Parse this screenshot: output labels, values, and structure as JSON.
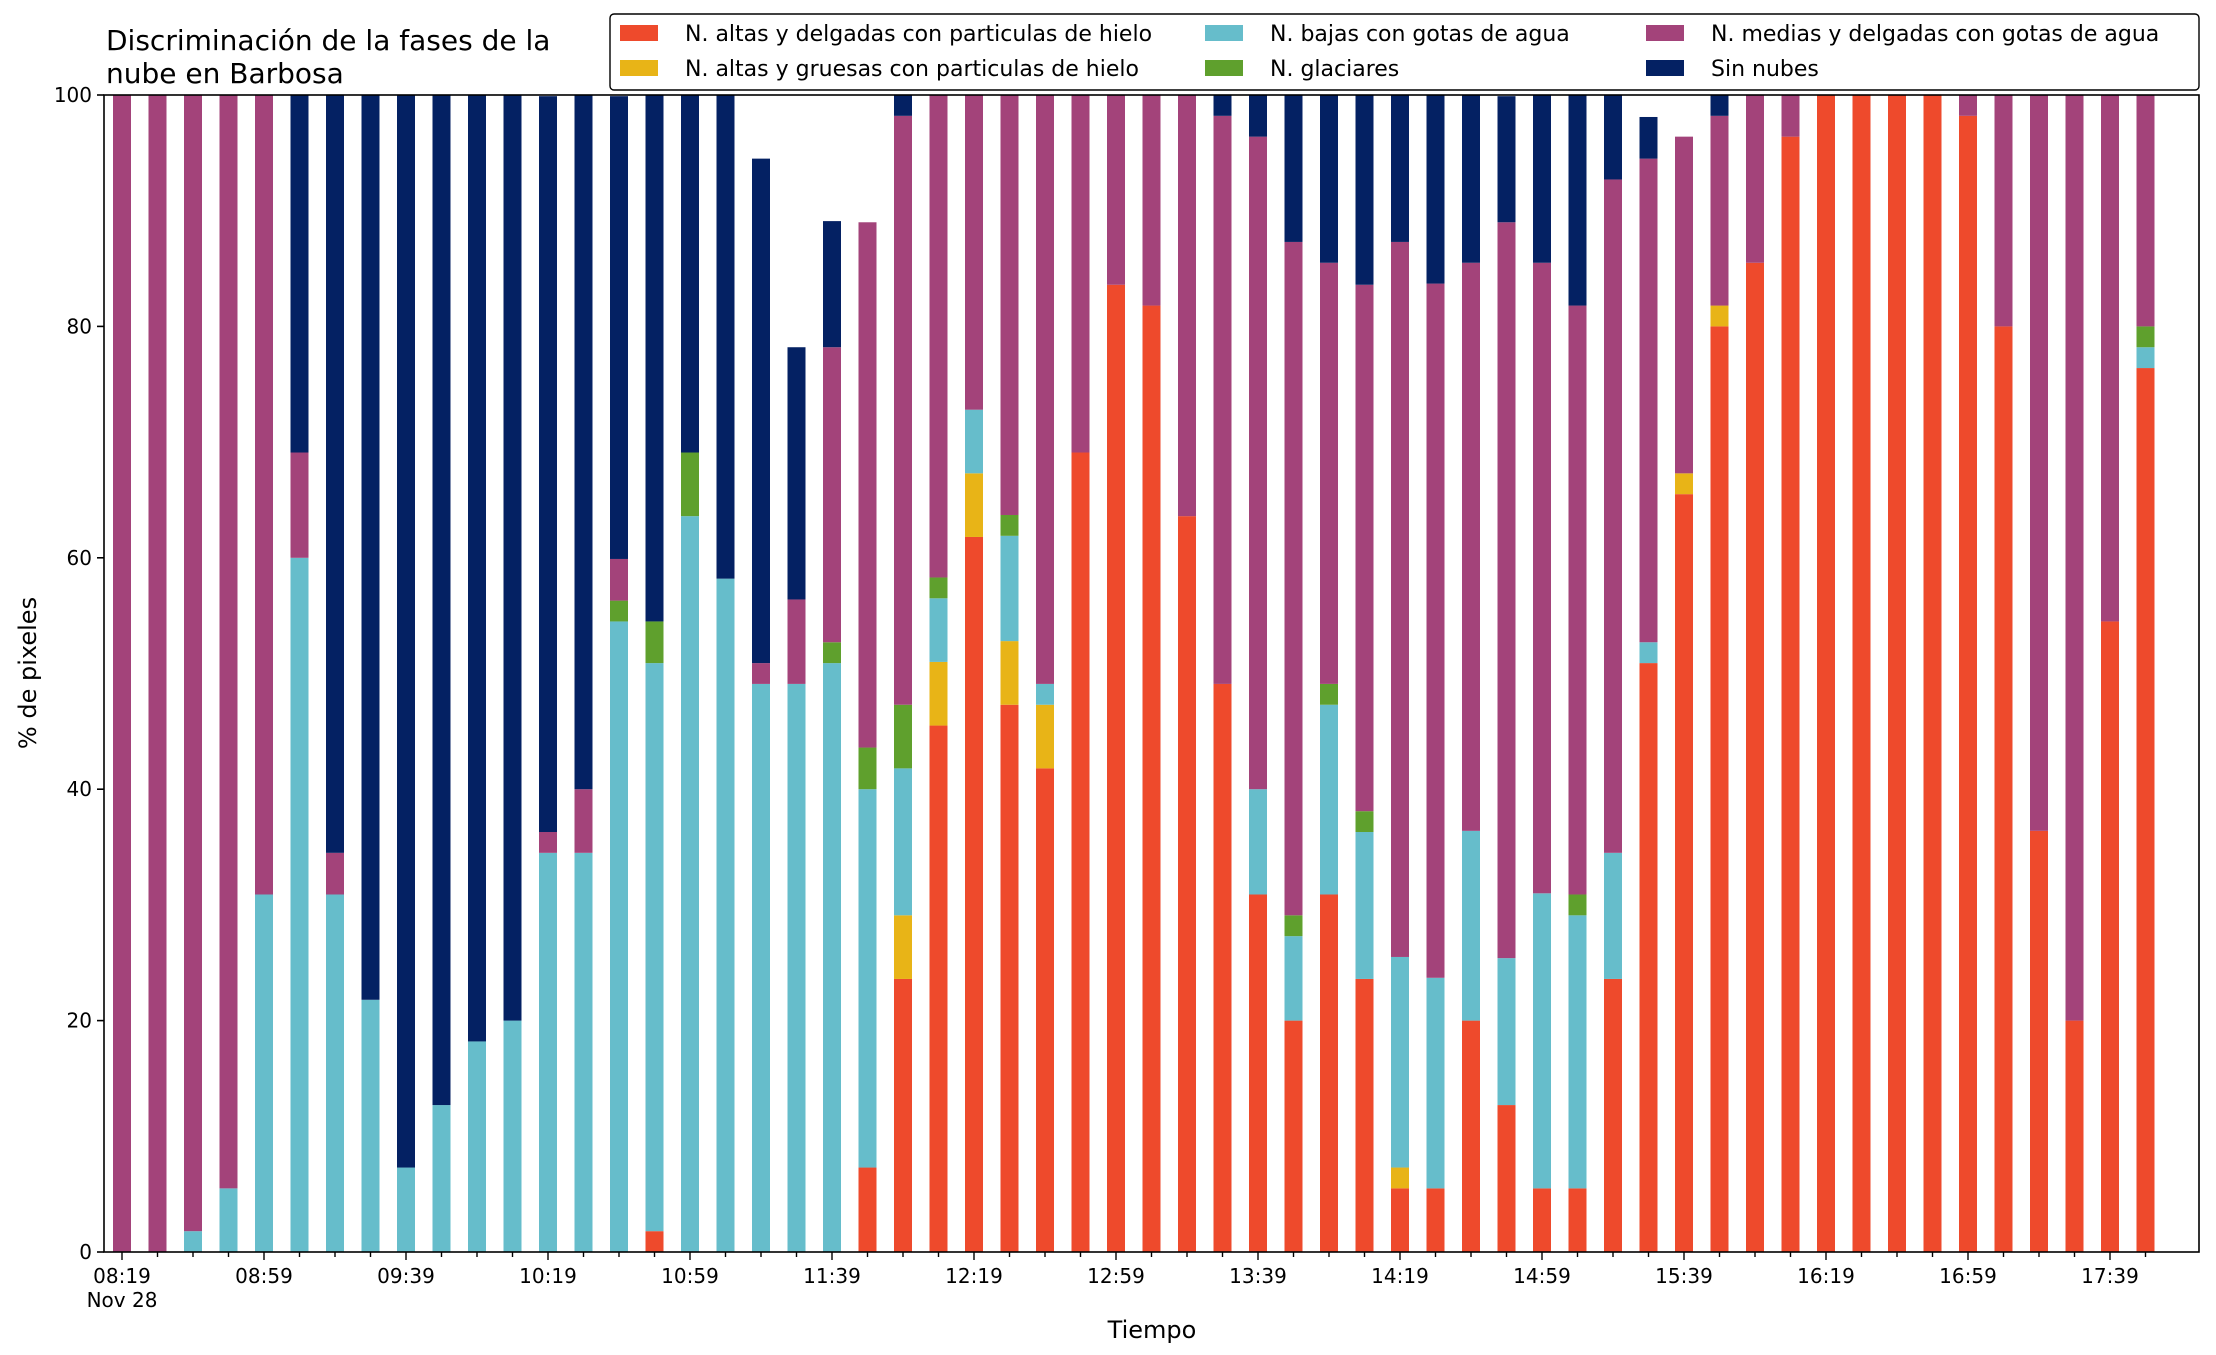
{
  "chart_data": {
    "type": "bar",
    "stacked": true,
    "title": "Discriminación de la fases de la\nnube en Barbosa",
    "xlabel": "Tiempo",
    "ylabel": "% de pixeles",
    "ylim": [
      0,
      100
    ],
    "yticks": [
      0,
      20,
      40,
      60,
      80,
      100
    ],
    "legend_position": "top-right",
    "x_tick_labels": [
      "08:19\nNov 28",
      "08:59",
      "09:39",
      "10:19",
      "10:59",
      "11:39",
      "12:19",
      "12:59",
      "13:39",
      "14:19",
      "14:59",
      "15:39",
      "16:19",
      "16:59",
      "17:39"
    ],
    "categories": [
      "08:19",
      "08:29",
      "08:39",
      "08:49",
      "08:59",
      "09:09",
      "09:19",
      "09:29",
      "09:39",
      "09:49",
      "09:59",
      "10:09",
      "10:19",
      "10:29",
      "10:39",
      "10:49",
      "10:59",
      "11:09",
      "11:19",
      "11:29",
      "11:39",
      "11:49",
      "11:59",
      "12:09",
      "12:19",
      "12:29",
      "12:39",
      "12:49",
      "12:59",
      "13:09",
      "13:19",
      "13:29",
      "13:39",
      "13:49",
      "13:59",
      "14:09",
      "14:19",
      "14:29",
      "14:39",
      "14:49",
      "14:59",
      "15:09",
      "15:19",
      "15:29",
      "15:39",
      "15:49",
      "15:59",
      "16:09",
      "16:19",
      "16:29",
      "16:39",
      "16:49",
      "16:59",
      "17:09",
      "17:19",
      "17:29",
      "17:39",
      "17:49"
    ],
    "series": [
      {
        "name": "N. altas y delgadas con particulas de hielo",
        "color": "#ee4a2c",
        "values": [
          0,
          0,
          0,
          0,
          0,
          0,
          0,
          0,
          0,
          0,
          0,
          0,
          0,
          0,
          0,
          1.8,
          0,
          0,
          0,
          0,
          0,
          7.3,
          23.6,
          45.5,
          61.8,
          47.3,
          41.8,
          69.1,
          83.6,
          81.8,
          63.6,
          49.1,
          30.9,
          20.0,
          30.9,
          23.6,
          5.5,
          5.5,
          20.0,
          12.7,
          5.5,
          5.5,
          23.6,
          50.9,
          65.5,
          80.0,
          85.5,
          96.4,
          100,
          100,
          100,
          100,
          98.2,
          80.0,
          36.4,
          20.0,
          54.5,
          76.4
        ]
      },
      {
        "name": "N. altas y gruesas con particulas de hielo",
        "color": "#e8b417",
        "values": [
          0,
          0,
          0,
          0,
          0,
          0,
          0,
          0,
          0,
          0,
          0,
          0,
          0,
          0,
          0,
          0,
          0,
          0,
          0,
          0,
          0,
          0,
          5.5,
          5.5,
          5.5,
          5.5,
          5.5,
          0,
          0,
          0,
          0,
          0,
          0,
          0,
          0,
          0,
          1.8,
          0,
          0,
          0,
          0,
          0,
          0,
          0,
          1.8,
          1.8,
          0,
          0,
          0,
          0,
          0,
          0,
          0,
          0,
          0,
          0,
          0,
          0
        ]
      },
      {
        "name": "N. bajas con gotas de agua",
        "color": "#66bdcb",
        "values": [
          0,
          0,
          1.8,
          5.5,
          30.9,
          60.0,
          30.9,
          21.8,
          7.3,
          12.7,
          18.2,
          20.0,
          34.5,
          34.5,
          54.5,
          49.1,
          63.6,
          58.2,
          49.1,
          49.1,
          50.9,
          32.7,
          12.7,
          5.5,
          5.5,
          9.1,
          1.8,
          0,
          0,
          0,
          0,
          0,
          9.1,
          7.3,
          16.4,
          12.7,
          18.2,
          18.2,
          16.4,
          12.7,
          25.5,
          23.6,
          10.9,
          1.8,
          0,
          0,
          0,
          0,
          0,
          0,
          0,
          0,
          0,
          0,
          0,
          0,
          0,
          1.8
        ]
      },
      {
        "name": "N. glaciares",
        "color": "#5fa02d",
        "values": [
          0,
          0,
          0,
          0,
          0,
          0,
          0,
          0,
          0,
          0,
          0,
          0,
          0,
          0,
          1.8,
          3.6,
          5.5,
          0,
          0,
          0,
          1.8,
          3.6,
          5.5,
          1.8,
          0,
          1.8,
          0,
          0,
          0,
          0,
          0,
          0,
          0,
          1.8,
          1.8,
          1.8,
          0,
          0,
          0,
          0,
          0,
          1.8,
          0,
          0,
          0,
          0,
          0,
          0,
          0,
          0,
          0,
          0,
          0,
          0,
          0,
          0,
          0,
          1.8
        ]
      },
      {
        "name": "N. medias y delgadas con gotas de agua",
        "color": "#a3437a",
        "values": [
          100,
          100,
          98.2,
          94.5,
          69.1,
          9.1,
          3.6,
          0,
          0,
          0,
          0,
          0,
          1.8,
          5.5,
          3.6,
          0,
          0,
          0,
          1.8,
          7.3,
          25.5,
          45.4,
          50.9,
          41.8,
          27.3,
          36.4,
          50.9,
          30.9,
          16.4,
          18.2,
          36.4,
          49.1,
          56.4,
          58.2,
          36.4,
          45.5,
          61.8,
          60.0,
          49.1,
          63.6,
          54.5,
          50.9,
          58.2,
          41.8,
          29.1,
          16.4,
          14.5,
          3.6,
          0,
          0,
          0,
          0,
          1.8,
          20.0,
          63.6,
          80.0,
          45.5,
          20.0
        ]
      },
      {
        "name": "Sin nubes",
        "color": "#042163",
        "values": [
          0,
          0,
          0,
          0,
          0,
          30.9,
          65.5,
          78.2,
          92.7,
          87.3,
          81.8,
          80.0,
          63.6,
          60.0,
          40.0,
          45.5,
          30.9,
          41.8,
          43.6,
          21.8,
          10.9,
          0,
          1.8,
          0,
          0,
          0,
          0,
          0,
          0,
          0,
          0,
          1.8,
          3.6,
          12.7,
          14.5,
          16.4,
          12.7,
          16.3,
          14.5,
          10.9,
          14.5,
          18.2,
          7.3,
          3.6,
          0,
          1.8,
          0,
          0,
          0,
          0,
          0,
          0,
          0,
          0,
          0,
          0,
          0,
          0
        ]
      }
    ]
  }
}
